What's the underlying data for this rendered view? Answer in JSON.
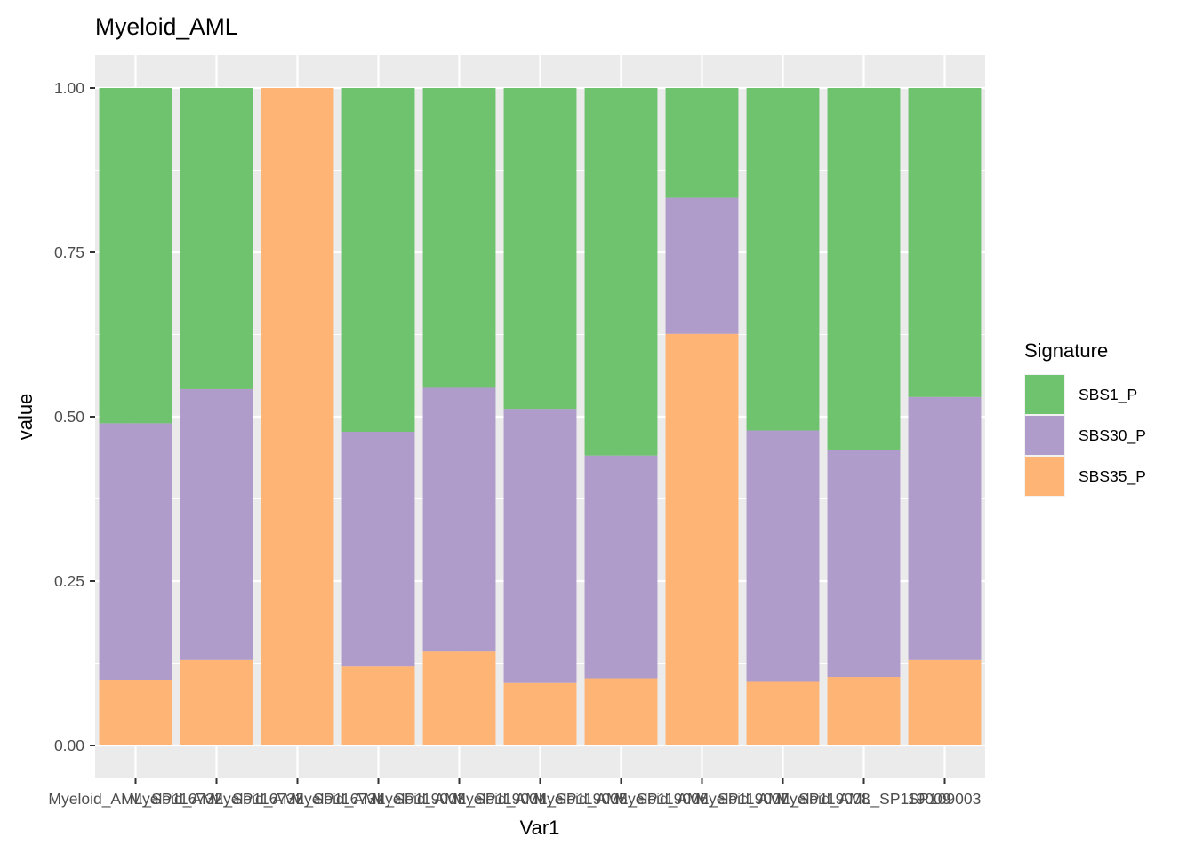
{
  "chart_data": {
    "type": "bar",
    "stacked": true,
    "title": "Myeloid_AML",
    "xlabel": "Var1",
    "ylabel": "value",
    "ylim": [
      0,
      1
    ],
    "yticks": [
      "0.00",
      "0.25",
      "0.50",
      "0.75",
      "1.00"
    ],
    "grid": true,
    "legend_position": "right",
    "legend_title": "Signature",
    "categories": [
      "Myeloid_AML_SP116732",
      "Myeloid_AML_SP116733",
      "Myeloid_AML_SP116734",
      "Myeloid_AML_SP119003",
      "Myeloid_AML_SP119004",
      "Myeloid_AML_SP119005",
      "Myeloid_AML_SP119006",
      "Myeloid_AML_SP119007",
      "Myeloid_AML_SP119008",
      "Myeloid_AML_SP119009",
      "SP109003"
    ],
    "series": [
      {
        "name": "SBS35_P",
        "color": "#FDB474",
        "values": [
          0.1,
          0.13,
          1.0,
          0.12,
          0.143,
          0.095,
          0.102,
          0.626,
          0.098,
          0.104,
          0.13
        ]
      },
      {
        "name": "SBS30_P",
        "color": "#B09CCB",
        "values": [
          0.39,
          0.412,
          0.0,
          0.357,
          0.401,
          0.417,
          0.339,
          0.207,
          0.381,
          0.346,
          0.4
        ]
      },
      {
        "name": "SBS1_P",
        "color": "#6FC26E",
        "values": [
          0.51,
          0.458,
          0.0,
          0.523,
          0.456,
          0.488,
          0.559,
          0.167,
          0.521,
          0.55,
          0.47
        ]
      }
    ],
    "legend_order": [
      "SBS1_P",
      "SBS30_P",
      "SBS35_P"
    ]
  }
}
